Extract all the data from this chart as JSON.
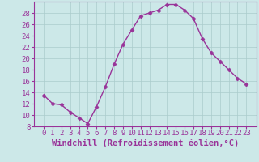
{
  "x": [
    0,
    1,
    2,
    3,
    4,
    5,
    6,
    7,
    8,
    9,
    10,
    11,
    12,
    13,
    14,
    15,
    16,
    17,
    18,
    19,
    20,
    21,
    22,
    23
  ],
  "y": [
    13.5,
    12.0,
    11.8,
    10.5,
    9.5,
    8.5,
    11.5,
    15.0,
    19.0,
    22.5,
    25.0,
    27.5,
    28.0,
    28.5,
    29.5,
    29.5,
    28.5,
    27.0,
    23.5,
    21.0,
    19.5,
    18.0,
    16.5,
    15.5
  ],
  "line_color": "#993399",
  "marker": "D",
  "markersize": 2.5,
  "linewidth": 1.0,
  "bg_color": "#cce8e8",
  "grid_color": "#aacccc",
  "xlabel": "Windchill (Refroidissement éolien,°C)",
  "xlabel_color": "#993399",
  "xlabel_fontsize": 7.5,
  "tick_color": "#993399",
  "tick_fontsize": 6.5,
  "ylim": [
    8,
    30
  ],
  "yticks": [
    8,
    10,
    12,
    14,
    16,
    18,
    20,
    22,
    24,
    26,
    28
  ],
  "xticks": [
    0,
    1,
    2,
    3,
    4,
    5,
    6,
    7,
    8,
    9,
    10,
    11,
    12,
    13,
    14,
    15,
    16,
    17,
    18,
    19,
    20,
    21,
    22,
    23
  ]
}
